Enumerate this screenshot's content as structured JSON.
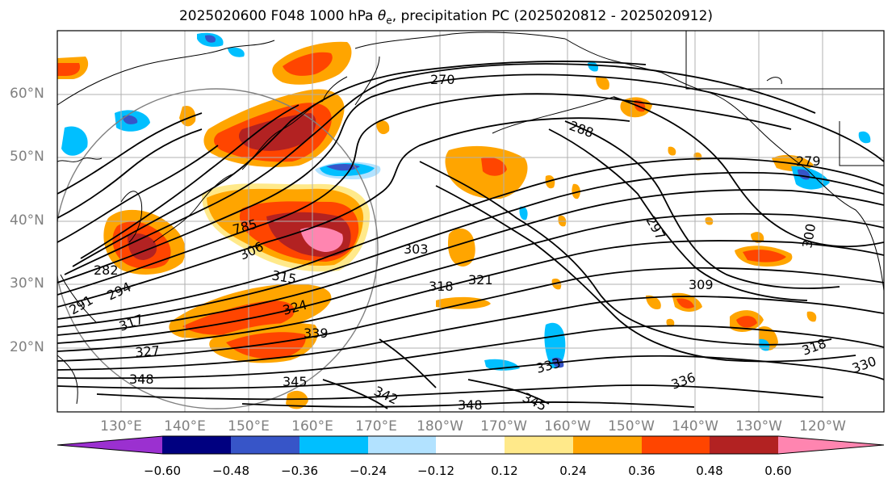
{
  "title": {
    "prefix": "2025020600 F048 1000 hPa ",
    "theta_symbol": "θ",
    "theta_sub": "e",
    "suffix": ", precipitation PC (2025020812 - 2025020912)"
  },
  "latitude_labels": [
    "60°N",
    "50°N",
    "40°N",
    "30°N",
    "20°N"
  ],
  "longitude_labels": [
    "130°E",
    "140°E",
    "150°E",
    "160°E",
    "170°E",
    "180°W",
    "170°W",
    "160°W",
    "150°W",
    "140°W",
    "130°W",
    "120°W"
  ],
  "contour_labels": [
    "270",
    "288",
    "279",
    "297",
    "300",
    "303",
    "309",
    "318",
    "321",
    "306",
    "315",
    "324",
    "785",
    "282",
    "294",
    "291",
    "317",
    "339",
    "327",
    "348",
    "345",
    "342",
    "348",
    "345",
    "336",
    "330",
    "318",
    "333"
  ],
  "colorbar": {
    "ticks": [
      "−0.60",
      "−0.48",
      "−0.36",
      "−0.24",
      "−0.12",
      "0.12",
      "0.24",
      "0.36",
      "0.48",
      "0.60"
    ],
    "colors": [
      "#9b30d0",
      "#000080",
      "#3755c8",
      "#00bfff",
      "#b2e2ff",
      "#ffffff",
      "#ffe98a",
      "#ffa500",
      "#ff4500",
      "#b22222",
      "#ff85b0",
      "#ff85b0"
    ]
  },
  "map_colors": {
    "contour": "#000000",
    "grid": "#b0b0b0",
    "great_circle": "#808080"
  }
}
